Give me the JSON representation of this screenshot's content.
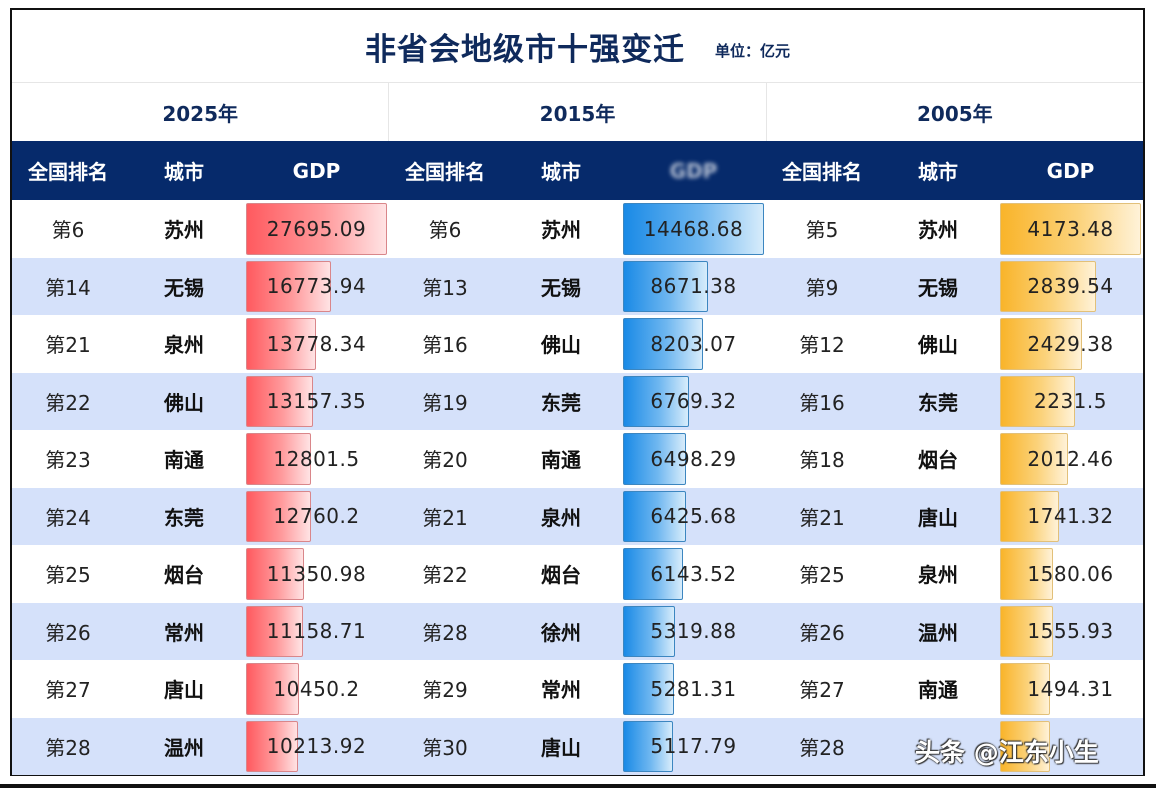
{
  "title": "非省会地级市十强变迁",
  "unit": "单位：亿元",
  "columns": {
    "rank": "全国排名",
    "city": "城市",
    "gdp": "GDP",
    "gdp_2015_obscured": "GDP"
  },
  "years": [
    {
      "label": "2025年",
      "color": "#ff5a5f",
      "rows": [
        {
          "rank": "第6",
          "city": "苏州",
          "gdp": "27695.09"
        },
        {
          "rank": "第14",
          "city": "无锡",
          "gdp": "16773.94"
        },
        {
          "rank": "第21",
          "city": "泉州",
          "gdp": "13778.34"
        },
        {
          "rank": "第22",
          "city": "佛山",
          "gdp": "13157.35"
        },
        {
          "rank": "第23",
          "city": "南通",
          "gdp": "12801.5"
        },
        {
          "rank": "第24",
          "city": "东莞",
          "gdp": "12760.2"
        },
        {
          "rank": "第25",
          "city": "烟台",
          "gdp": "11350.98"
        },
        {
          "rank": "第26",
          "city": "常州",
          "gdp": "11158.71"
        },
        {
          "rank": "第27",
          "city": "唐山",
          "gdp": "10450.2"
        },
        {
          "rank": "第28",
          "city": "温州",
          "gdp": "10213.92"
        }
      ]
    },
    {
      "label": "2015年",
      "color": "#1a8ae6",
      "rows": [
        {
          "rank": "第6",
          "city": "苏州",
          "gdp": "14468.68"
        },
        {
          "rank": "第13",
          "city": "无锡",
          "gdp": "8671.38"
        },
        {
          "rank": "第16",
          "city": "佛山",
          "gdp": "8203.07"
        },
        {
          "rank": "第19",
          "city": "东莞",
          "gdp": "6769.32"
        },
        {
          "rank": "第20",
          "city": "南通",
          "gdp": "6498.29"
        },
        {
          "rank": "第21",
          "city": "泉州",
          "gdp": "6425.68"
        },
        {
          "rank": "第22",
          "city": "烟台",
          "gdp": "6143.52"
        },
        {
          "rank": "第28",
          "city": "徐州",
          "gdp": "5319.88"
        },
        {
          "rank": "第29",
          "city": "常州",
          "gdp": "5281.31"
        },
        {
          "rank": "第30",
          "city": "唐山",
          "gdp": "5117.79"
        }
      ]
    },
    {
      "label": "2005年",
      "color": "#f9b42a",
      "rows": [
        {
          "rank": "第5",
          "city": "苏州",
          "gdp": "4173.48"
        },
        {
          "rank": "第9",
          "city": "无锡",
          "gdp": "2839.54"
        },
        {
          "rank": "第12",
          "city": "佛山",
          "gdp": "2429.38"
        },
        {
          "rank": "第16",
          "city": "东莞",
          "gdp": "2231.5"
        },
        {
          "rank": "第18",
          "city": "烟台",
          "gdp": "2012.46"
        },
        {
          "rank": "第21",
          "city": "唐山",
          "gdp": "1741.32"
        },
        {
          "rank": "第25",
          "city": "泉州",
          "gdp": "1580.06"
        },
        {
          "rank": "第26",
          "city": "温州",
          "gdp": "1555.93"
        },
        {
          "rank": "第27",
          "city": "南通",
          "gdp": "1494.31"
        },
        {
          "rank": "第28",
          "city": "",
          "gdp": ""
        }
      ]
    }
  ],
  "watermark": "头条 @江东小生",
  "chart_data": {
    "type": "table",
    "title": "非省会地级市十强变迁",
    "subtitle": "单位：亿元",
    "columns": [
      "全国排名",
      "城市",
      "GDP"
    ],
    "groups": [
      {
        "year": "2025年",
        "ranks": [
          "第6",
          "第14",
          "第21",
          "第22",
          "第23",
          "第24",
          "第25",
          "第26",
          "第27",
          "第28"
        ],
        "categories": [
          "苏州",
          "无锡",
          "泉州",
          "佛山",
          "南通",
          "东莞",
          "烟台",
          "常州",
          "唐山",
          "温州"
        ],
        "values": [
          27695.09,
          16773.94,
          13778.34,
          13157.35,
          12801.5,
          12760.2,
          11350.98,
          11158.71,
          10450.2,
          10213.92
        ]
      },
      {
        "year": "2015年",
        "ranks": [
          "第6",
          "第13",
          "第16",
          "第19",
          "第20",
          "第21",
          "第22",
          "第28",
          "第29",
          "第30"
        ],
        "categories": [
          "苏州",
          "无锡",
          "佛山",
          "东莞",
          "南通",
          "泉州",
          "烟台",
          "徐州",
          "常州",
          "唐山"
        ],
        "values": [
          14468.68,
          8671.38,
          8203.07,
          6769.32,
          6498.29,
          6425.68,
          6143.52,
          5319.88,
          5281.31,
          5117.79
        ]
      },
      {
        "year": "2005年",
        "ranks": [
          "第5",
          "第9",
          "第12",
          "第16",
          "第18",
          "第21",
          "第25",
          "第26",
          "第27",
          "第28"
        ],
        "categories": [
          "苏州",
          "无锡",
          "佛山",
          "东莞",
          "烟台",
          "唐山",
          "泉州",
          "温州",
          "南通",
          null
        ],
        "values": [
          4173.48,
          2839.54,
          2429.38,
          2231.5,
          2012.46,
          1741.32,
          1580.06,
          1555.93,
          1494.31,
          null
        ]
      }
    ]
  }
}
